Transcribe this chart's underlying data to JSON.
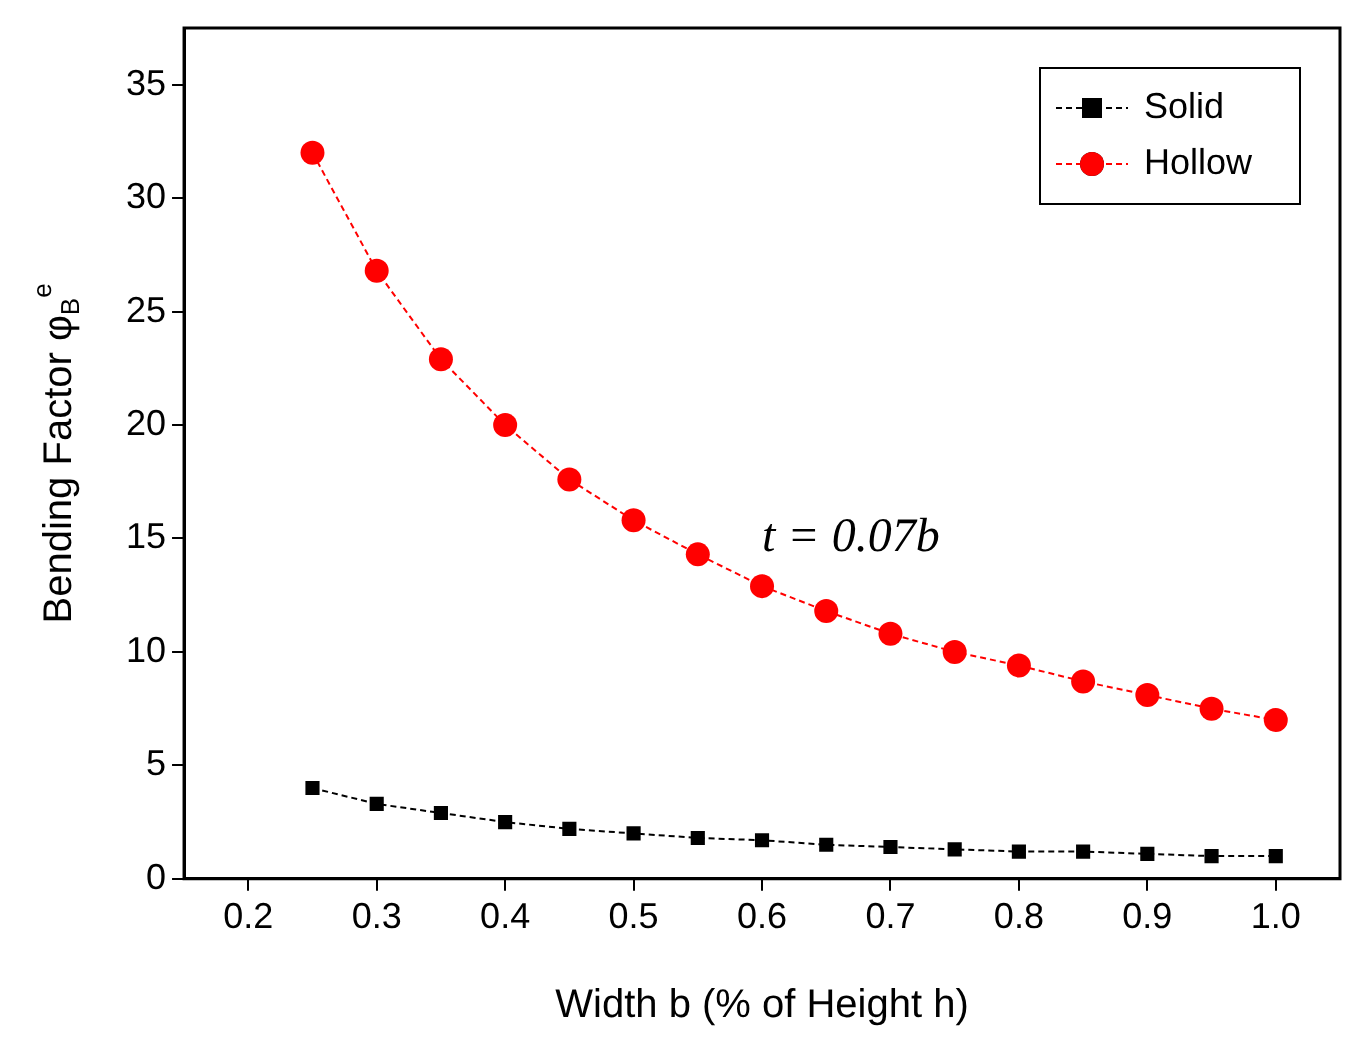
{
  "chart_data": {
    "type": "line",
    "xlabel": "Width b (% of Height h)",
    "ylabel": "Bending Factor φ$_{B}$$^{e}$",
    "x": [
      0.25,
      0.3,
      0.35,
      0.4,
      0.45,
      0.5,
      0.55,
      0.6,
      0.65,
      0.7,
      0.75,
      0.8,
      0.85,
      0.9,
      0.95,
      1.0
    ],
    "series": [
      {
        "name": "Solid",
        "color": "#000000",
        "marker": "square",
        "values": [
          4.0,
          3.3,
          2.9,
          2.5,
          2.2,
          2.0,
          1.8,
          1.7,
          1.5,
          1.4,
          1.3,
          1.2,
          1.2,
          1.1,
          1.0,
          1.0
        ]
      },
      {
        "name": "Hollow",
        "color": "#ff0000",
        "marker": "circle",
        "values": [
          32.0,
          26.8,
          22.9,
          20.0,
          17.6,
          15.8,
          14.3,
          12.9,
          11.8,
          10.8,
          10.0,
          9.4,
          8.7,
          8.1,
          7.5,
          7.0
        ]
      }
    ],
    "xlim": [
      0.15,
      1.05
    ],
    "xticks": [
      0.2,
      0.3,
      0.4,
      0.5,
      0.6,
      0.7,
      0.8,
      0.9,
      {
        "value": 1,
        "label": "1.0"
      }
    ],
    "ylim": [
      0,
      37.5
    ],
    "yticks": [
      0,
      5,
      10,
      15,
      20,
      25,
      30,
      35
    ],
    "line_style": "dashed",
    "legend": "top right",
    "grid": false,
    "annotations": [
      "t = 0.07b"
    ]
  }
}
